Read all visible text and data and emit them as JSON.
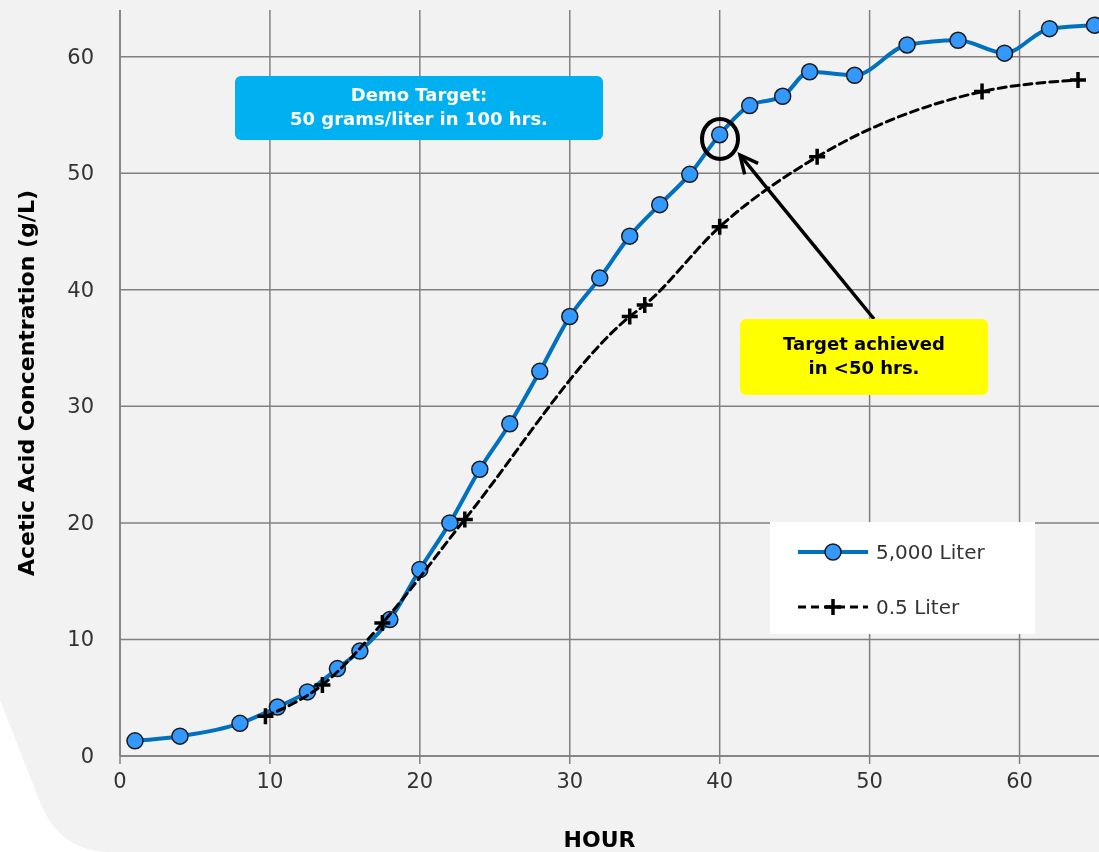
{
  "chart_data": {
    "type": "line",
    "xlabel": "HOUR",
    "ylabel": "Acetic Acid Concentration (g/L)",
    "xlim": [
      0,
      65.3
    ],
    "ylim": [
      0,
      64
    ],
    "xticks": [
      0,
      10,
      20,
      30,
      40,
      50,
      60
    ],
    "yticks": [
      0,
      10,
      20,
      30,
      40,
      50,
      60
    ],
    "grid": true,
    "legend": "bottom right",
    "series": [
      {
        "name": "5,000 Liter",
        "color": "#0070c0",
        "marker": "circle",
        "line_style": "solid",
        "x": [
          1,
          4,
          8,
          10.5,
          12.5,
          14.5,
          16,
          18,
          20,
          22,
          24,
          26,
          28,
          30,
          32,
          34,
          36,
          38,
          40,
          42,
          44.2,
          46,
          49,
          52.5,
          55.9,
          59,
          62,
          65
        ],
        "values": [
          1.3,
          1.7,
          2.8,
          4.2,
          5.5,
          7.5,
          9.0,
          11.7,
          16.0,
          20.0,
          24.6,
          28.5,
          33.0,
          37.7,
          41.0,
          44.6,
          47.3,
          49.9,
          53.3,
          55.8,
          56.6,
          58.7,
          58.4,
          61.0,
          61.4,
          60.3,
          62.4,
          62.7
        ]
      },
      {
        "name": "0.5 Liter",
        "color": "#000000",
        "marker": "cross",
        "line_style": "dashed",
        "x": [
          9.7,
          13.5,
          17.5,
          23,
          34,
          35,
          40,
          46.5,
          57.5,
          63.9
        ],
        "values": [
          3.4,
          6.1,
          11.4,
          20.3,
          37.7,
          38.7,
          45.4,
          51.4,
          57.0,
          58.0
        ]
      }
    ],
    "annotations": [
      "Demo Target:\n50 grams/liter in 100 hrs.",
      "Target achieved\nin <50 hrs."
    ]
  }
}
